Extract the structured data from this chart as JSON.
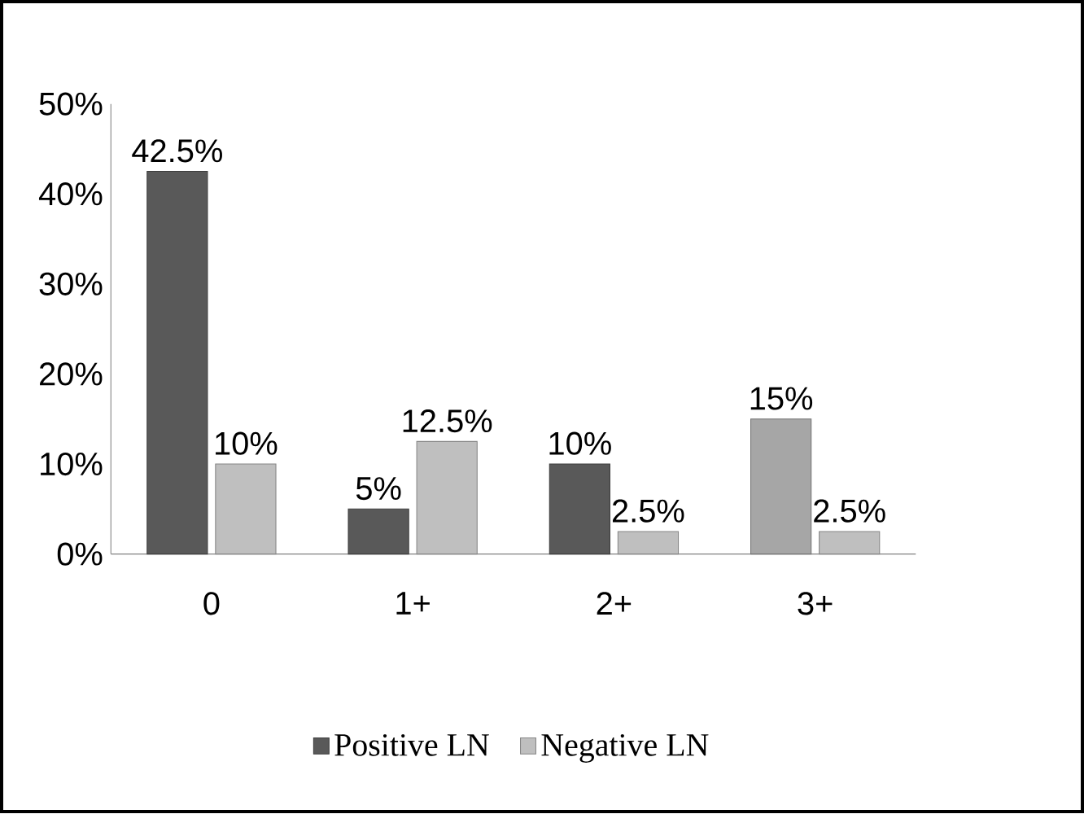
{
  "chart_data": {
    "type": "bar",
    "categories": [
      "0",
      "1+",
      "2+",
      "3+"
    ],
    "series": [
      {
        "name": "Positive LN",
        "colors": [
          "#595959",
          "#595959",
          "#595959",
          "#a6a6a6"
        ],
        "values": [
          42.5,
          5,
          10,
          15
        ],
        "value_labels": [
          "42.5%",
          "5%",
          "10%",
          "15%"
        ]
      },
      {
        "name": "Negative LN",
        "colors": [
          "#bfbfbf",
          "#bfbfbf",
          "#bfbfbf",
          "#bfbfbf"
        ],
        "values": [
          10,
          12.5,
          2.5,
          2.5
        ],
        "value_labels": [
          "10%",
          "12.5%",
          "2.5%",
          "2.5%"
        ]
      }
    ],
    "ylim": [
      0,
      50
    ],
    "yticks": [
      {
        "value": 0,
        "label": "0%"
      },
      {
        "value": 10,
        "label": "10%"
      },
      {
        "value": 20,
        "label": "20%"
      },
      {
        "value": 30,
        "label": "30%"
      },
      {
        "value": 40,
        "label": "40%"
      },
      {
        "value": 50,
        "label": "50%"
      }
    ],
    "grid": false,
    "legend": "bottom"
  }
}
